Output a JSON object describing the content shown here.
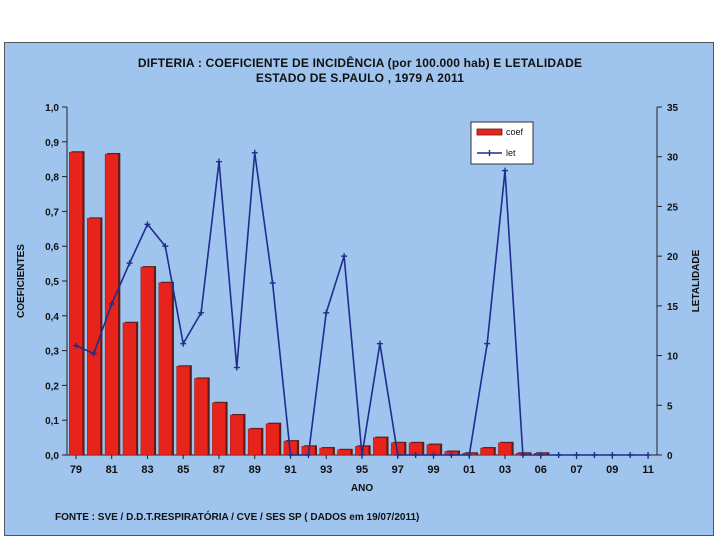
{
  "chart_data": {
    "type": "bar+line",
    "title": "DIFTERIA : COEFICIENTE DE INCIDÊNCIA (por 100.000 hab) E LETALIDADE",
    "subtitle": "ESTADO DE S.PAULO , 1979 A 2011",
    "xlabel": "ANO",
    "ylabel_left": "COEFICIENTES",
    "ylabel_right": "LETALIDADE",
    "ylim_left": [
      0,
      1
    ],
    "ylim_right": [
      0,
      35
    ],
    "yticks_left": [
      "0,0",
      "0,1",
      "0,2",
      "0,3",
      "0,4",
      "0,5",
      "0,6",
      "0,7",
      "0,8",
      "0,9",
      "1,0"
    ],
    "yticks_right": [
      "0",
      "5",
      "10",
      "15",
      "20",
      "25",
      "30",
      "35"
    ],
    "x_tick_labels": [
      "79",
      "81",
      "83",
      "85",
      "87",
      "89",
      "91",
      "93",
      "95",
      "97",
      "99",
      "01",
      "03",
      "06",
      "07",
      "09",
      "11"
    ],
    "years": [
      1979,
      1980,
      1981,
      1982,
      1983,
      1984,
      1985,
      1986,
      1987,
      1988,
      1989,
      1990,
      1991,
      1992,
      1993,
      1994,
      1995,
      1996,
      1997,
      1998,
      1999,
      2000,
      2001,
      2002,
      2003,
      2004,
      2005,
      2006,
      2007,
      2008,
      2009,
      2010,
      2011
    ],
    "series": [
      {
        "name": "coef",
        "kind": "bar",
        "axis": "left",
        "values": [
          0.87,
          0.68,
          0.865,
          0.38,
          0.54,
          0.495,
          0.255,
          0.22,
          0.15,
          0.115,
          0.075,
          0.09,
          0.04,
          0.025,
          0.02,
          0.015,
          0.025,
          0.05,
          0.035,
          0.035,
          0.03,
          0.01,
          0.005,
          0.02,
          0.035,
          0.005,
          0.005,
          0,
          0,
          0,
          0,
          0,
          0
        ]
      },
      {
        "name": "let",
        "kind": "line",
        "axis": "right",
        "values": [
          11,
          10.2,
          15.2,
          19.3,
          23.2,
          21,
          11.2,
          14.3,
          29.5,
          8.8,
          30.4,
          17.3,
          0,
          0,
          14.3,
          20,
          0,
          11.2,
          0,
          0,
          0,
          0,
          0,
          11.2,
          28.6,
          0,
          0,
          0,
          0,
          0,
          0,
          0,
          0
        ]
      }
    ],
    "legend": {
      "position": "top-right",
      "entries": [
        "coef",
        "let"
      ]
    },
    "colors": {
      "bar": "#e8231c",
      "bar_shadow": "#5a1f1a",
      "line": "#1f2d8c",
      "background": "#9fc4ee"
    },
    "grid": false
  },
  "source_text": "FONTE : SVE / D.D.T.RESPIRATÓRIA / CVE / SES SP ( DADOS em 19/07/2011)"
}
